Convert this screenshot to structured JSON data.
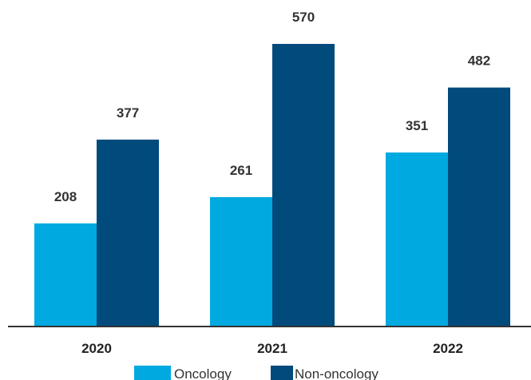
{
  "chart_data": {
    "type": "bar",
    "title": "",
    "xlabel": "",
    "ylabel": "",
    "categories": [
      "2020",
      "2021",
      "2022"
    ],
    "series": [
      {
        "name": "Oncology",
        "color": "#00a9e0",
        "values": [
          208,
          261,
          351
        ]
      },
      {
        "name": "Non-oncology",
        "color": "#004a7c",
        "values": [
          377,
          570,
          482
        ]
      }
    ],
    "ylim": [
      0,
      570
    ],
    "grid": false,
    "legend": "bottom-center"
  }
}
